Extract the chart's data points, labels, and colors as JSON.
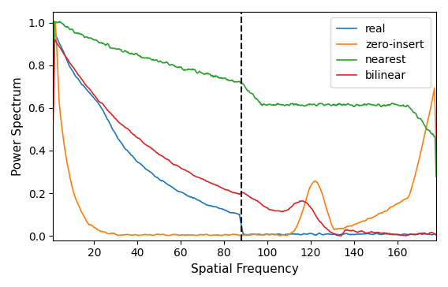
{
  "ylabel": "Power Spectrum",
  "xlabel": "Spatial Frequency",
  "legend": [
    "real",
    "zero-insert",
    "nearest",
    "bilinear"
  ],
  "colors": {
    "real": "#1f77b4",
    "zero_insert": "#ff7f0e",
    "nearest": "#2ca02c",
    "bilinear": "#d62728"
  },
  "ylim": [
    -0.02,
    1.05
  ],
  "xlim": [
    1,
    178
  ],
  "xticks": [
    20,
    40,
    60,
    80,
    100,
    120,
    140,
    160
  ],
  "yticks": [
    0.0,
    0.2,
    0.4,
    0.6,
    0.8,
    1.0
  ],
  "dashed_line_x": 88,
  "figsize": [
    5.68,
    3.64
  ],
  "dpi": 100
}
